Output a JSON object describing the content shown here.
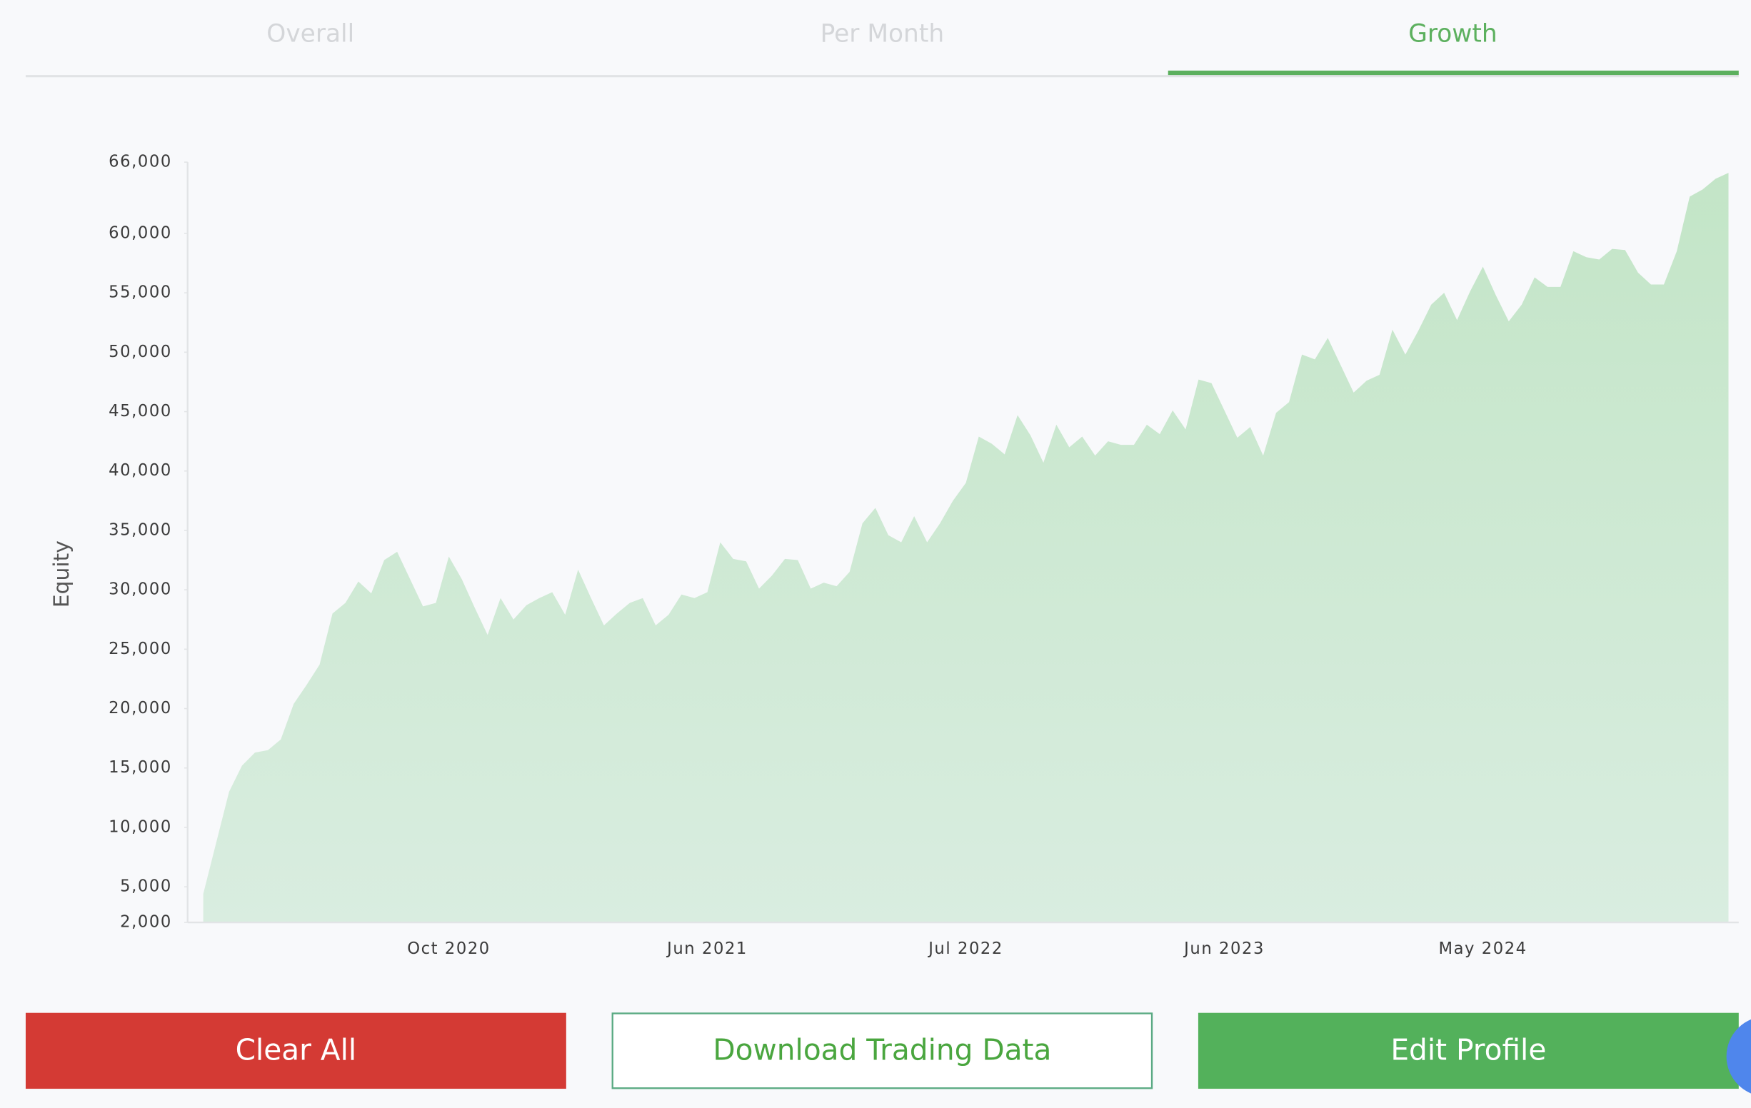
{
  "tabs": [
    "Overall",
    "Per Month",
    "Growth"
  ],
  "buttons": [
    "Clear All",
    "Download Trading Data",
    "Edit Profile"
  ],
  "chart_data": {
    "type": "area",
    "y_label": "Equity",
    "color": "#c6e6c9",
    "grid": false,
    "ylim": [
      2000,
      66000
    ],
    "yticks": [
      {
        "value": 2000,
        "label": "2,000"
      },
      {
        "value": 5000,
        "label": "5,000"
      },
      {
        "value": 10000,
        "label": "10,000"
      },
      {
        "value": 15000,
        "label": "15,000"
      },
      {
        "value": 20000,
        "label": "20,000"
      },
      {
        "value": 25000,
        "label": "25,000"
      },
      {
        "value": 30000,
        "label": "30,000"
      },
      {
        "value": 35000,
        "label": "35,000"
      },
      {
        "value": 40000,
        "label": "40,000"
      },
      {
        "value": 45000,
        "label": "45,000"
      },
      {
        "value": 50000,
        "label": "50,000"
      },
      {
        "value": 55000,
        "label": "55,000"
      },
      {
        "value": 60000,
        "label": "60,000"
      },
      {
        "value": 66000,
        "label": "66,000"
      }
    ],
    "categories": [
      null,
      null,
      null,
      null,
      null,
      null,
      null,
      null,
      null,
      null,
      null,
      null,
      null,
      null,
      null,
      null,
      null,
      null,
      null,
      "Oct 2020",
      null,
      null,
      null,
      null,
      null,
      null,
      null,
      null,
      null,
      null,
      null,
      null,
      null,
      null,
      null,
      null,
      null,
      null,
      null,
      "Jun 2021",
      null,
      null,
      null,
      null,
      null,
      null,
      null,
      null,
      null,
      null,
      null,
      null,
      null,
      null,
      null,
      null,
      null,
      null,
      null,
      "Jul 2022",
      null,
      null,
      null,
      null,
      null,
      null,
      null,
      null,
      null,
      null,
      null,
      null,
      null,
      null,
      null,
      null,
      null,
      null,
      null,
      "Jun 2023",
      null,
      null,
      null,
      null,
      null,
      null,
      null,
      null,
      null,
      null,
      null,
      null,
      null,
      null,
      null,
      null,
      null,
      null,
      null,
      "May 2024",
      null,
      null,
      null,
      null,
      null,
      null,
      null,
      null,
      null,
      null,
      null,
      null,
      null,
      null,
      null,
      null,
      null,
      null,
      null
    ],
    "values": [
      4400,
      8700,
      13000,
      15200,
      16300,
      16500,
      17400,
      20400,
      22000,
      23700,
      28000,
      28900,
      30700,
      29700,
      32500,
      33200,
      30900,
      28600,
      28900,
      32800,
      30900,
      28500,
      26200,
      29300,
      27500,
      28700,
      29300,
      29800,
      27900,
      31700,
      29300,
      27000,
      28000,
      28900,
      29300,
      27000,
      27900,
      29600,
      29300,
      29800,
      34000,
      32600,
      32400,
      30100,
      31200,
      32600,
      32500,
      30100,
      30600,
      30300,
      31500,
      35600,
      36900,
      34600,
      34000,
      36200,
      34000,
      35600,
      37500,
      39000,
      42900,
      42300,
      41400,
      44700,
      43000,
      40700,
      43900,
      42000,
      42900,
      41300,
      42500,
      42200,
      42200,
      43900,
      43100,
      45100,
      43500,
      47700,
      47400,
      45100,
      42800,
      43700,
      41300,
      44900,
      45800,
      49800,
      49400,
      51200,
      48900,
      46600,
      47600,
      48100,
      51900,
      49800,
      51800,
      54000,
      55000,
      52700,
      55100,
      57200,
      54800,
      52600,
      54000,
      56300,
      55500,
      55500,
      58500,
      58000,
      57800,
      58700,
      58600,
      56700,
      55700,
      55700,
      58500,
      63100,
      63700,
      64600,
      65100
    ]
  }
}
